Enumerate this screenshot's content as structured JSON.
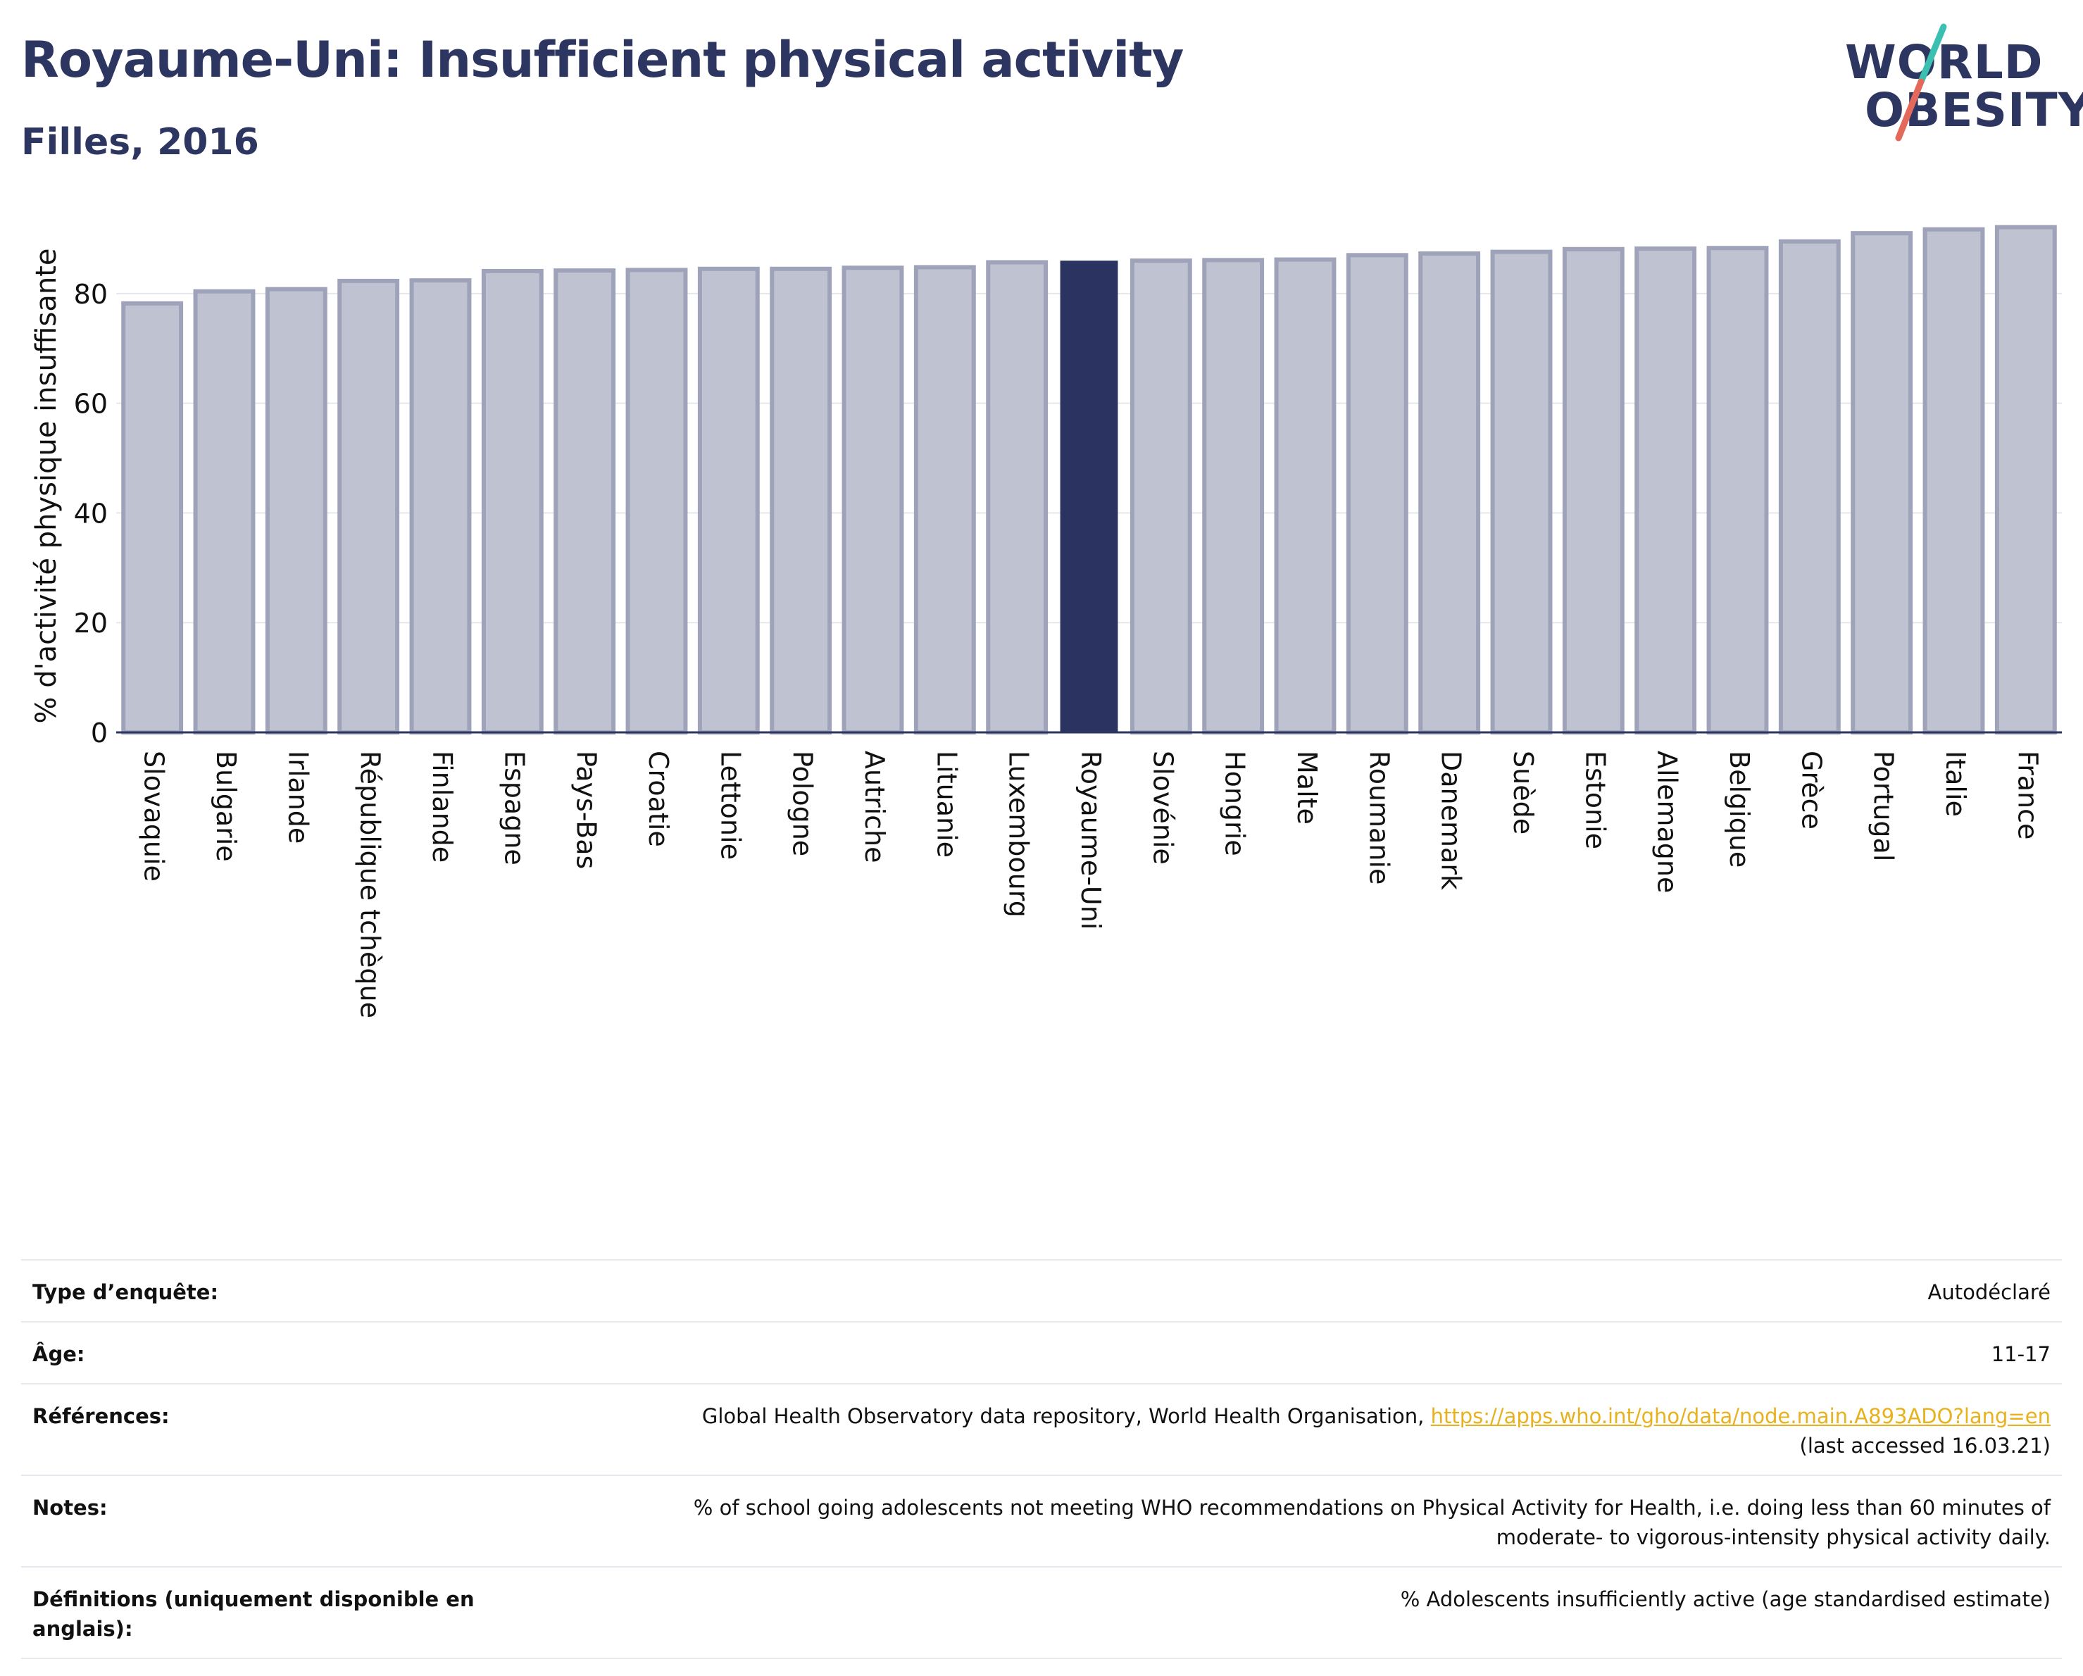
{
  "header": {
    "title": "Royaume-Uni: Insufficient physical activity",
    "subtitle": "Filles, 2016"
  },
  "logo": {
    "line1": "WORLD",
    "line2": "OBESITY",
    "colors": {
      "text": "#2d3561",
      "slash_teal": "#3bbfb0",
      "slash_red": "#e5695a"
    }
  },
  "colors": {
    "bar_default": "#bfc2d0",
    "bar_default_border": "#9ea3b9",
    "bar_highlight": "#2b3461",
    "axis": "#2d3561",
    "grid": "#e6e7ec",
    "link": "#e8b11e"
  },
  "chart_data": {
    "type": "bar",
    "title": "",
    "xlabel": "",
    "ylabel": "% d'activité physique insuffisante",
    "ylim": [
      0,
      95
    ],
    "yticks": [
      0,
      20,
      40,
      60,
      80
    ],
    "grid": true,
    "highlight": "Royaume-Uni",
    "categories": [
      "Slovaquie",
      "Bulgarie",
      "Irlande",
      "République tchèque",
      "Finlande",
      "Espagne",
      "Pays-Bas",
      "Croatie",
      "Lettonie",
      "Pologne",
      "Autriche",
      "Lituanie",
      "Luxembourg",
      "Royaume-Uni",
      "Slovénie",
      "Hongrie",
      "Malte",
      "Roumanie",
      "Danemark",
      "Suède",
      "Estonie",
      "Allemagne",
      "Belgique",
      "Grèce",
      "Portugal",
      "Italie",
      "France"
    ],
    "values": [
      78.2,
      80.4,
      80.8,
      82.3,
      82.4,
      84.1,
      84.2,
      84.3,
      84.5,
      84.5,
      84.7,
      84.8,
      85.7,
      86.0,
      86.0,
      86.1,
      86.2,
      87.0,
      87.3,
      87.6,
      88.1,
      88.2,
      88.3,
      89.5,
      91.0,
      91.7,
      92.1
    ]
  },
  "info": {
    "rows": [
      {
        "label": "Type d’enquête:",
        "value": "Autodéclaré"
      },
      {
        "label": "Âge:",
        "value": "11-17"
      },
      {
        "label": "Références:",
        "value": "Global Health Observatory data repository, World Health Organisation, ",
        "link": "https://apps.who.int/gho/data/node.main.A893ADO?lang=en",
        "value2": "(last accessed 16.03.21)"
      },
      {
        "label": "Notes:",
        "value": "% of school going adolescents not meeting WHO recommendations on Physical Activity for Health, i.e. doing less than 60 minutes of",
        "value2": "moderate- to vigorous-intensity physical activity daily."
      },
      {
        "label": "Définitions (uniquement disponible en anglais):",
        "value": "% Adolescents insufficiently active (age standardised estimate)"
      }
    ]
  }
}
